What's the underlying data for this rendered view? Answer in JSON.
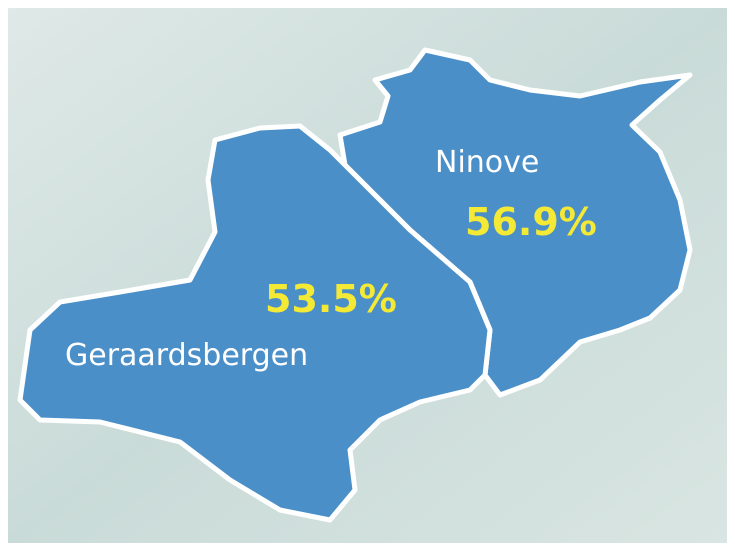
{
  "regions": [
    {
      "name": "Geraardsbergen",
      "value": "53.5%"
    },
    {
      "name": "Ninove",
      "value": "56.9%"
    }
  ]
}
